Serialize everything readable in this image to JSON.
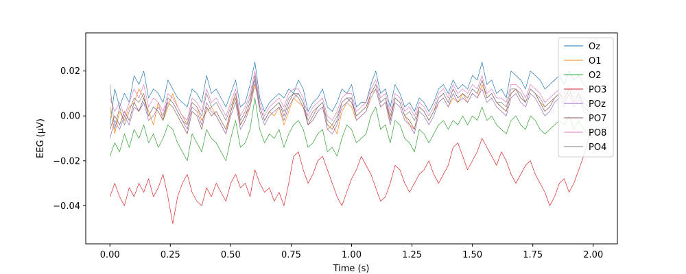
{
  "chart_data": {
    "type": "line",
    "title": "",
    "xlabel": "Time (s)",
    "ylabel": "EEG (μV)",
    "xlim": [
      -0.1,
      2.1
    ],
    "ylim": [
      -0.057,
      0.037
    ],
    "xticks": [
      0.0,
      0.25,
      0.5,
      0.75,
      1.0,
      1.25,
      1.5,
      1.75,
      2.0
    ],
    "xtick_labels": [
      "0.00",
      "0.25",
      "0.50",
      "0.75",
      "1.00",
      "1.25",
      "1.50",
      "1.75",
      "2.00"
    ],
    "yticks": [
      -0.04,
      -0.02,
      0.0,
      0.02
    ],
    "ytick_labels": [
      "−0.04",
      "−0.02",
      "0.00",
      "0.02"
    ],
    "grid": false,
    "legend_position": "top-right",
    "x_start": 0.0,
    "x_end": 2.0,
    "series": [
      {
        "name": "Oz",
        "color": "#1f77b4",
        "values": [
          -0.004,
          0.012,
          0.004,
          0.01,
          0.006,
          0.018,
          0.014,
          0.02,
          0.008,
          0.012,
          0.01,
          0.006,
          0.016,
          0.012,
          0.008,
          0.006,
          0.004,
          0.012,
          0.01,
          0.006,
          0.018,
          0.01,
          0.012,
          0.008,
          0.004,
          0.01,
          0.016,
          0.004,
          0.006,
          0.014,
          0.024,
          0.008,
          0.002,
          0.006,
          0.008,
          0.01,
          0.008,
          0.012,
          0.01,
          0.016,
          0.012,
          0.002,
          0.006,
          0.008,
          0.012,
          0.004,
          0.002,
          0.006,
          0.012,
          0.01,
          0.014,
          0.004,
          0.006,
          0.006,
          0.014,
          0.02,
          0.01,
          0.012,
          0.004,
          0.014,
          0.01,
          0.004,
          0.006,
          0.002,
          0.008,
          0.006,
          0.002,
          0.006,
          0.012,
          0.014,
          0.01,
          0.016,
          0.012,
          0.014,
          0.012,
          0.018,
          0.016,
          0.024,
          0.014,
          0.016,
          0.01,
          0.012,
          0.008,
          0.02,
          0.018,
          0.016,
          0.012,
          0.02,
          0.018,
          0.016,
          0.012,
          0.014,
          0.016,
          0.018,
          0.014,
          0.02,
          0.016,
          0.018,
          0.014,
          0.012,
          0.01
        ]
      },
      {
        "name": "O1",
        "color": "#ff7f0e",
        "values": [
          0.004,
          -0.008,
          0.002,
          -0.002,
          0.004,
          0.006,
          0.012,
          0.008,
          0.002,
          -0.004,
          0.006,
          -0.002,
          0.004,
          0.01,
          0.004,
          0.0,
          -0.004,
          0.006,
          0.004,
          -0.002,
          0.002,
          0.004,
          0.0,
          -0.004,
          -0.008,
          0.002,
          0.01,
          -0.004,
          0.0,
          0.004,
          0.014,
          0.004,
          -0.002,
          0.002,
          0.0,
          0.004,
          -0.004,
          0.002,
          0.008,
          0.006,
          0.004,
          -0.004,
          -0.002,
          0.002,
          0.004,
          -0.006,
          -0.004,
          -0.008,
          0.002,
          0.006,
          0.004,
          -0.002,
          0.0,
          0.002,
          0.01,
          0.012,
          0.004,
          0.006,
          -0.002,
          0.008,
          0.006,
          0.0,
          -0.004,
          -0.006,
          0.004,
          0.002,
          -0.002,
          0.002,
          0.006,
          0.008,
          0.004,
          0.008,
          0.006,
          0.01,
          0.006,
          0.01,
          0.008,
          0.014,
          0.008,
          0.01,
          0.006,
          0.004,
          0.002,
          0.01,
          0.012,
          0.008,
          0.006,
          0.012,
          0.01,
          0.006,
          0.004,
          0.006,
          0.008,
          0.01,
          0.008,
          0.012,
          0.006,
          0.01,
          0.006,
          0.004,
          0.002
        ]
      },
      {
        "name": "O2",
        "color": "#2ca02c",
        "values": [
          -0.018,
          -0.012,
          -0.016,
          -0.008,
          -0.014,
          -0.006,
          -0.01,
          -0.004,
          -0.012,
          -0.008,
          -0.014,
          -0.01,
          -0.004,
          -0.006,
          -0.012,
          -0.016,
          -0.02,
          -0.008,
          -0.012,
          -0.016,
          -0.006,
          -0.01,
          -0.012,
          -0.016,
          -0.02,
          -0.01,
          -0.002,
          -0.014,
          -0.012,
          -0.006,
          0.008,
          -0.006,
          -0.012,
          -0.008,
          -0.01,
          -0.006,
          -0.014,
          -0.008,
          -0.004,
          -0.002,
          -0.006,
          -0.014,
          -0.012,
          -0.008,
          -0.006,
          -0.016,
          -0.014,
          -0.018,
          -0.01,
          -0.004,
          -0.006,
          -0.012,
          -0.01,
          -0.008,
          0.0,
          0.004,
          -0.006,
          -0.004,
          -0.012,
          -0.002,
          -0.004,
          -0.01,
          -0.012,
          -0.016,
          -0.006,
          -0.008,
          -0.012,
          -0.008,
          -0.004,
          -0.002,
          -0.006,
          -0.002,
          -0.004,
          0.0,
          -0.004,
          0.0,
          -0.002,
          0.004,
          -0.002,
          0.0,
          -0.004,
          -0.006,
          -0.008,
          -0.002,
          0.0,
          -0.004,
          -0.006,
          0.0,
          -0.002,
          -0.006,
          -0.008,
          -0.006,
          -0.004,
          -0.002,
          -0.004,
          0.0,
          -0.006,
          -0.002,
          -0.006,
          -0.008,
          -0.01
        ]
      },
      {
        "name": "PO3",
        "color": "#d62728",
        "values": [
          -0.036,
          -0.03,
          -0.036,
          -0.04,
          -0.032,
          -0.036,
          -0.03,
          -0.034,
          -0.028,
          -0.036,
          -0.032,
          -0.026,
          -0.036,
          -0.048,
          -0.036,
          -0.03,
          -0.026,
          -0.034,
          -0.038,
          -0.04,
          -0.032,
          -0.036,
          -0.03,
          -0.034,
          -0.038,
          -0.03,
          -0.026,
          -0.032,
          -0.03,
          -0.036,
          -0.024,
          -0.03,
          -0.034,
          -0.032,
          -0.038,
          -0.034,
          -0.04,
          -0.03,
          -0.018,
          -0.016,
          -0.024,
          -0.03,
          -0.026,
          -0.02,
          -0.018,
          -0.024,
          -0.03,
          -0.036,
          -0.04,
          -0.034,
          -0.028,
          -0.024,
          -0.018,
          -0.022,
          -0.026,
          -0.032,
          -0.038,
          -0.036,
          -0.03,
          -0.022,
          -0.024,
          -0.03,
          -0.034,
          -0.03,
          -0.026,
          -0.024,
          -0.02,
          -0.026,
          -0.03,
          -0.026,
          -0.022,
          -0.014,
          -0.012,
          -0.018,
          -0.024,
          -0.02,
          -0.016,
          -0.01,
          -0.014,
          -0.018,
          -0.022,
          -0.016,
          -0.02,
          -0.026,
          -0.03,
          -0.026,
          -0.022,
          -0.02,
          -0.026,
          -0.03,
          -0.034,
          -0.04,
          -0.036,
          -0.03,
          -0.028,
          -0.034,
          -0.03,
          -0.024,
          -0.018,
          -0.01,
          -0.006
        ]
      },
      {
        "name": "POz",
        "color": "#9467bd",
        "values": [
          -0.01,
          -0.002,
          -0.006,
          0.0,
          -0.004,
          0.004,
          0.002,
          0.006,
          -0.002,
          0.0,
          0.004,
          0.0,
          0.008,
          0.006,
          0.002,
          -0.002,
          -0.006,
          0.004,
          0.002,
          -0.004,
          0.006,
          0.002,
          0.0,
          -0.004,
          -0.008,
          0.0,
          0.006,
          -0.006,
          -0.002,
          0.004,
          0.016,
          0.002,
          -0.004,
          0.0,
          0.002,
          0.004,
          -0.002,
          0.004,
          0.008,
          0.01,
          0.006,
          -0.004,
          -0.002,
          0.002,
          0.004,
          -0.006,
          -0.008,
          -0.004,
          0.004,
          0.006,
          0.008,
          -0.002,
          0.0,
          0.002,
          0.008,
          0.012,
          0.004,
          0.006,
          -0.004,
          0.006,
          0.004,
          -0.002,
          -0.004,
          -0.008,
          0.002,
          0.0,
          -0.004,
          0.0,
          0.006,
          0.008,
          0.004,
          0.01,
          0.006,
          0.008,
          0.006,
          0.01,
          0.008,
          0.012,
          0.006,
          0.008,
          0.004,
          0.002,
          0.0,
          0.008,
          0.01,
          0.006,
          0.004,
          0.01,
          0.008,
          0.004,
          0.0,
          0.002,
          0.006,
          0.008,
          0.004,
          0.01,
          0.004,
          0.008,
          0.002,
          0.0,
          -0.002
        ]
      },
      {
        "name": "PO7",
        "color": "#8c564b",
        "values": [
          -0.006,
          0.0,
          -0.004,
          0.002,
          -0.002,
          0.006,
          0.002,
          0.008,
          0.0,
          0.004,
          0.002,
          -0.002,
          0.006,
          0.004,
          0.0,
          -0.004,
          -0.008,
          0.002,
          0.0,
          -0.006,
          0.004,
          0.0,
          0.002,
          -0.002,
          -0.006,
          0.002,
          0.008,
          -0.004,
          0.0,
          0.006,
          0.018,
          0.004,
          -0.002,
          0.002,
          0.004,
          0.006,
          0.0,
          0.006,
          0.01,
          0.008,
          0.004,
          -0.004,
          0.0,
          0.004,
          0.006,
          -0.004,
          -0.006,
          -0.002,
          0.006,
          0.008,
          0.006,
          0.0,
          0.002,
          0.004,
          0.01,
          0.014,
          0.006,
          0.008,
          -0.002,
          0.008,
          0.006,
          0.0,
          -0.002,
          -0.006,
          0.004,
          0.002,
          -0.002,
          0.002,
          0.008,
          0.01,
          0.006,
          0.012,
          0.008,
          0.01,
          0.008,
          0.012,
          0.01,
          0.016,
          0.008,
          0.01,
          0.006,
          0.004,
          0.002,
          0.01,
          0.012,
          0.008,
          0.006,
          0.012,
          0.01,
          0.006,
          0.002,
          0.004,
          0.008,
          0.01,
          0.006,
          0.012,
          0.006,
          0.01,
          0.004,
          0.002,
          0.0
        ]
      },
      {
        "name": "PO8",
        "color": "#e377c2",
        "values": [
          0.008,
          0.002,
          0.006,
          0.0,
          0.006,
          0.012,
          0.008,
          0.014,
          0.004,
          0.008,
          0.006,
          0.002,
          0.01,
          0.008,
          0.004,
          0.0,
          -0.002,
          0.008,
          0.006,
          0.002,
          0.012,
          0.006,
          0.008,
          0.004,
          0.0,
          0.006,
          0.012,
          0.0,
          0.004,
          0.01,
          0.02,
          0.006,
          0.0,
          0.004,
          0.006,
          0.008,
          0.004,
          0.01,
          0.012,
          0.012,
          0.008,
          0.0,
          0.004,
          0.006,
          0.008,
          0.0,
          -0.002,
          0.002,
          0.008,
          0.01,
          0.01,
          0.002,
          0.004,
          0.006,
          0.012,
          0.016,
          0.008,
          0.01,
          0.002,
          0.01,
          0.008,
          0.002,
          0.004,
          0.0,
          0.006,
          0.004,
          0.0,
          0.004,
          0.01,
          0.012,
          0.008,
          0.014,
          0.01,
          0.012,
          0.01,
          0.014,
          0.012,
          0.018,
          0.01,
          0.012,
          0.008,
          0.008,
          0.006,
          0.014,
          0.014,
          0.012,
          0.008,
          0.014,
          0.012,
          0.01,
          0.006,
          0.008,
          0.01,
          0.012,
          0.01,
          0.014,
          0.01,
          0.012,
          0.008,
          0.006,
          0.004
        ]
      },
      {
        "name": "PO4",
        "color": "#7f7f7f",
        "values": [
          0.014,
          -0.006,
          0.004,
          -0.004,
          0.002,
          0.008,
          0.006,
          0.01,
          0.0,
          0.004,
          0.002,
          -0.002,
          0.008,
          0.006,
          0.002,
          -0.002,
          -0.004,
          0.006,
          0.004,
          0.0,
          0.01,
          0.004,
          0.006,
          0.002,
          -0.002,
          0.004,
          0.01,
          -0.002,
          0.002,
          0.008,
          0.018,
          0.004,
          -0.002,
          0.002,
          0.004,
          0.006,
          0.002,
          0.008,
          0.01,
          0.01,
          0.006,
          -0.002,
          0.002,
          0.004,
          0.006,
          -0.002,
          -0.004,
          0.0,
          0.006,
          0.008,
          0.008,
          0.0,
          0.002,
          0.004,
          0.01,
          0.014,
          0.006,
          0.008,
          0.0,
          0.008,
          0.006,
          0.0,
          0.002,
          -0.002,
          0.004,
          0.002,
          -0.002,
          0.002,
          0.008,
          0.01,
          0.006,
          0.012,
          0.008,
          0.01,
          0.008,
          0.012,
          0.01,
          0.016,
          0.008,
          0.01,
          0.006,
          0.006,
          0.004,
          0.012,
          0.012,
          0.01,
          0.006,
          0.012,
          0.01,
          0.008,
          0.004,
          0.006,
          0.008,
          0.01,
          0.008,
          0.012,
          0.008,
          0.01,
          0.006,
          0.004,
          0.002
        ]
      }
    ]
  }
}
